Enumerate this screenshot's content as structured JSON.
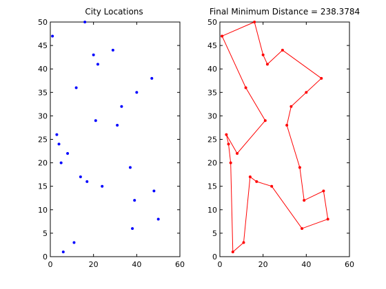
{
  "figure": {
    "background": "#ffffff"
  },
  "chart_data": [
    {
      "type": "scatter",
      "title": "City Locations",
      "xlabel": "",
      "ylabel": "",
      "xlim": [
        0,
        60
      ],
      "ylim": [
        0,
        50
      ],
      "xticks": [
        0,
        20,
        40,
        60
      ],
      "yticks": [
        0,
        5,
        10,
        15,
        20,
        25,
        30,
        35,
        40,
        45,
        50
      ],
      "grid": false,
      "marker": "dot",
      "color": "#0000ff",
      "x": [
        1,
        16,
        20,
        29,
        22,
        47,
        12,
        40,
        33,
        21,
        31,
        3,
        4,
        8,
        5,
        37,
        14,
        17,
        24,
        48,
        39,
        50,
        38,
        11,
        6
      ],
      "y": [
        47,
        50,
        43,
        44,
        41,
        38,
        36,
        35,
        32,
        29,
        28,
        26,
        24,
        22,
        20,
        19,
        17,
        16,
        15,
        14,
        12,
        8,
        6,
        3,
        1
      ]
    },
    {
      "type": "line",
      "title": "Final Minimum Distance = 238.3784",
      "xlabel": "",
      "ylabel": "",
      "xlim": [
        0,
        60
      ],
      "ylim": [
        0,
        50
      ],
      "xticks": [
        0,
        20,
        40,
        60
      ],
      "yticks": [
        0,
        5,
        10,
        15,
        20,
        25,
        30,
        35,
        40,
        45,
        50
      ],
      "grid": false,
      "marker": "dot",
      "color": "#ff0000",
      "x": [
        1,
        16,
        20,
        22,
        29,
        47,
        40,
        33,
        31,
        37,
        39,
        48,
        50,
        38,
        24,
        17,
        14,
        11,
        6,
        5,
        4,
        3,
        8,
        21,
        12,
        1
      ],
      "y": [
        47,
        50,
        43,
        41,
        44,
        38,
        35,
        32,
        28,
        19,
        12,
        14,
        8,
        6,
        15,
        16,
        17,
        3,
        1,
        20,
        24,
        26,
        22,
        29,
        36,
        47
      ]
    }
  ]
}
